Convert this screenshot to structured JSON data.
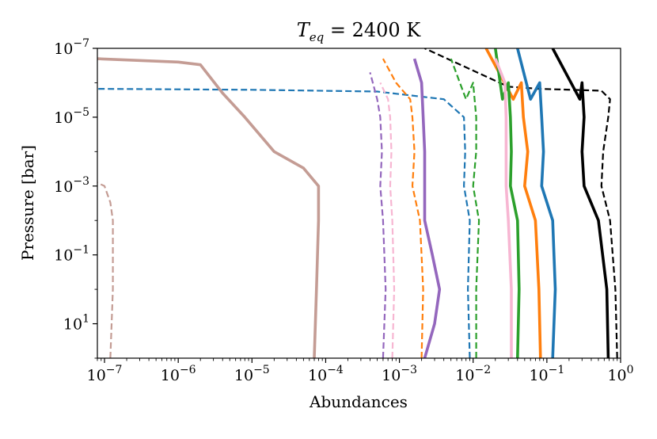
{
  "chart_data": {
    "type": "line",
    "title_main": "T",
    "title_sub": "eq",
    "title_rest": " = 2400 K",
    "xlabel": "Abundances",
    "ylabel": "Pressure [bar]",
    "xscale": "log",
    "yscale": "log",
    "y_inverted": true,
    "xlim": [
      8e-08,
      1
    ],
    "ylim": [
      100,
      1e-07
    ],
    "xticks": [
      {
        "value": 1e-07,
        "base": "10",
        "exp": "−7"
      },
      {
        "value": 1e-06,
        "base": "10",
        "exp": "−6"
      },
      {
        "value": 1e-05,
        "base": "10",
        "exp": "−5"
      },
      {
        "value": 0.0001,
        "base": "10",
        "exp": "−4"
      },
      {
        "value": 0.001,
        "base": "10",
        "exp": "−3"
      },
      {
        "value": 0.01,
        "base": "10",
        "exp": "−2"
      },
      {
        "value": 0.1,
        "base": "10",
        "exp": "−1"
      },
      {
        "value": 1,
        "base": "10",
        "exp": "0"
      }
    ],
    "yticks": [
      {
        "value": 1e-07,
        "base": "10",
        "exp": "−7"
      },
      {
        "value": 1e-05,
        "base": "10",
        "exp": "−5"
      },
      {
        "value": 0.001,
        "base": "10",
        "exp": "−3"
      },
      {
        "value": 0.1,
        "base": "10",
        "exp": "−1"
      },
      {
        "value": 10,
        "base": "10",
        "exp": "1"
      }
    ],
    "series": [
      {
        "color": "#000000",
        "style": "solid",
        "points": [
          [
            0.68,
            100
          ],
          [
            0.65,
            1
          ],
          [
            0.5,
            0.01
          ],
          [
            0.32,
            0.001
          ],
          [
            0.3,
            0.0001
          ],
          [
            0.32,
            1e-05
          ],
          [
            0.3,
            1e-06
          ],
          [
            0.28,
            3e-06
          ],
          [
            0.12,
            1e-07
          ]
        ]
      },
      {
        "color": "#000000",
        "style": "dashed",
        "points": [
          [
            0.9,
            100
          ],
          [
            0.85,
            1
          ],
          [
            0.72,
            0.01
          ],
          [
            0.55,
            0.001
          ],
          [
            0.58,
            0.0001
          ],
          [
            0.68,
            1e-05
          ],
          [
            0.72,
            3e-06
          ],
          [
            0.55,
            1.7e-06
          ],
          [
            0.08,
            1.5e-06
          ],
          [
            0.03,
            1.3e-06
          ],
          [
            0.0022,
            1e-07
          ]
        ]
      },
      {
        "color": "#1f77b4",
        "style": "solid",
        "points": [
          [
            0.12,
            100
          ],
          [
            0.13,
            1
          ],
          [
            0.12,
            0.01
          ],
          [
            0.085,
            0.001
          ],
          [
            0.09,
            0.0001
          ],
          [
            0.085,
            1e-05
          ],
          [
            0.08,
            1e-06
          ],
          [
            0.06,
            3e-06
          ],
          [
            0.04,
            1e-07
          ]
        ]
      },
      {
        "color": "#1f77b4",
        "style": "dashed",
        "points": [
          [
            0.009,
            100
          ],
          [
            0.0085,
            1
          ],
          [
            0.009,
            0.01
          ],
          [
            0.0075,
            0.001
          ],
          [
            0.0078,
            0.0001
          ],
          [
            0.0075,
            1e-05
          ],
          [
            0.004,
            3e-06
          ],
          [
            0.0005,
            1.8e-06
          ],
          [
            1e-05,
            1.6e-06
          ],
          [
            8e-08,
            1.5e-06
          ]
        ]
      },
      {
        "color": "#ff7f0e",
        "style": "solid",
        "points": [
          [
            0.082,
            100
          ],
          [
            0.078,
            1
          ],
          [
            0.07,
            0.01
          ],
          [
            0.05,
            0.001
          ],
          [
            0.055,
            0.0001
          ],
          [
            0.048,
            1e-05
          ],
          [
            0.045,
            1e-06
          ],
          [
            0.035,
            3e-06
          ],
          [
            0.015,
            1e-07
          ]
        ]
      },
      {
        "color": "#ff7f0e",
        "style": "dashed",
        "points": [
          [
            0.002,
            100
          ],
          [
            0.0021,
            1
          ],
          [
            0.0019,
            0.01
          ],
          [
            0.0015,
            0.001
          ],
          [
            0.0016,
            0.0001
          ],
          [
            0.0015,
            1e-05
          ],
          [
            0.0014,
            3e-06
          ],
          [
            0.0009,
            1e-06
          ],
          [
            0.0006,
            2e-07
          ]
        ]
      },
      {
        "color": "#2ca02c",
        "style": "solid",
        "points": [
          [
            0.04,
            100
          ],
          [
            0.042,
            1
          ],
          [
            0.04,
            0.01
          ],
          [
            0.032,
            0.001
          ],
          [
            0.033,
            0.0001
          ],
          [
            0.032,
            1e-05
          ],
          [
            0.03,
            1e-06
          ],
          [
            0.025,
            3e-06
          ],
          [
            0.02,
            1e-07
          ]
        ]
      },
      {
        "color": "#2ca02c",
        "style": "dashed",
        "points": [
          [
            0.011,
            100
          ],
          [
            0.011,
            1
          ],
          [
            0.012,
            0.01
          ],
          [
            0.01,
            0.001
          ],
          [
            0.011,
            0.0001
          ],
          [
            0.011,
            1e-05
          ],
          [
            0.01,
            1e-06
          ],
          [
            0.008,
            3e-06
          ],
          [
            0.005,
            2e-07
          ]
        ]
      },
      {
        "color": "#9467bd",
        "style": "solid",
        "points": [
          [
            0.0022,
            100
          ],
          [
            0.003,
            10
          ],
          [
            0.0035,
            1
          ],
          [
            0.0028,
            0.1
          ],
          [
            0.0022,
            0.01
          ],
          [
            0.0022,
            0.001
          ],
          [
            0.0022,
            0.0001
          ],
          [
            0.0021,
            1e-05
          ],
          [
            0.002,
            1e-06
          ],
          [
            0.0016,
            2e-07
          ]
        ]
      },
      {
        "color": "#9467bd",
        "style": "dashed",
        "points": [
          [
            0.0006,
            100
          ],
          [
            0.00065,
            1
          ],
          [
            0.0006,
            0.01
          ],
          [
            0.00055,
            0.001
          ],
          [
            0.00058,
            0.0001
          ],
          [
            0.00055,
            1e-05
          ],
          [
            0.0005,
            3e-06
          ],
          [
            0.0004,
            5e-07
          ]
        ]
      },
      {
        "color": "#f7b6d2",
        "style": "solid",
        "points": [
          [
            0.033,
            100
          ],
          [
            0.033,
            1
          ],
          [
            0.03,
            0.01
          ],
          [
            0.028,
            0.001
          ],
          [
            0.028,
            0.0001
          ],
          [
            0.028,
            1e-05
          ],
          [
            0.027,
            1e-06
          ],
          [
            0.02,
            2e-07
          ]
        ]
      },
      {
        "color": "#f7b6d2",
        "style": "dashed",
        "points": [
          [
            0.0008,
            100
          ],
          [
            0.00085,
            1
          ],
          [
            0.0008,
            0.01
          ],
          [
            0.00075,
            0.001
          ],
          [
            0.00078,
            0.0001
          ],
          [
            0.00075,
            1e-05
          ],
          [
            0.0007,
            3e-06
          ],
          [
            0.00055,
            1e-06
          ]
        ]
      },
      {
        "color": "#c49c94",
        "style": "solid",
        "points": [
          [
            7e-05,
            100
          ],
          [
            7.5e-05,
            1
          ],
          [
            8e-05,
            0.01
          ],
          [
            8e-05,
            0.001
          ],
          [
            5e-05,
            0.0003
          ],
          [
            2e-05,
            0.0001
          ],
          [
            8e-06,
            1e-05
          ],
          [
            4e-06,
            2e-06
          ],
          [
            2e-06,
            3e-07
          ],
          [
            1e-06,
            2.5e-07
          ],
          [
            8e-08,
            2e-07
          ]
        ]
      },
      {
        "color": "#c49c94",
        "style": "dashed",
        "points": [
          [
            1.2e-07,
            100
          ],
          [
            1.3e-07,
            1
          ],
          [
            1.3e-07,
            0.01
          ],
          [
            1.2e-07,
            0.003
          ],
          [
            1e-07,
            0.001
          ],
          [
            8e-08,
            0.0008
          ]
        ]
      }
    ]
  }
}
